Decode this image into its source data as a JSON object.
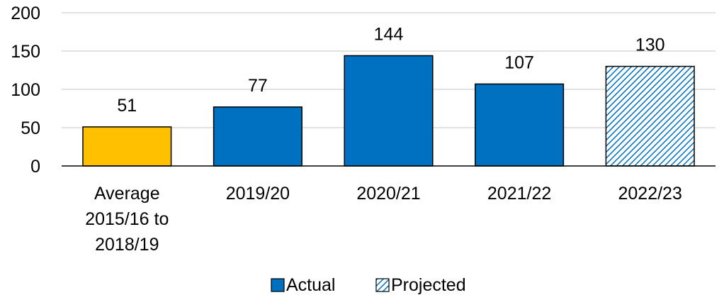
{
  "chart_data": {
    "type": "bar",
    "categories": [
      [
        "Average",
        "2015/16 to",
        "2018/19"
      ],
      [
        "2019/20"
      ],
      [
        "2020/21"
      ],
      [
        "2021/22"
      ],
      [
        "2022/23"
      ]
    ],
    "values": [
      51,
      77,
      144,
      107,
      130
    ],
    "data_labels": [
      "51",
      "77",
      "144",
      "107",
      "130"
    ],
    "bar_styles": [
      "average",
      "actual",
      "actual",
      "actual",
      "projected"
    ],
    "ylim": [
      0,
      200
    ],
    "yticks": [
      0,
      50,
      100,
      150,
      200
    ],
    "ytick_labels": [
      "0",
      "50",
      "100",
      "150",
      "200"
    ],
    "grid": true,
    "legend": {
      "placement": "bottom",
      "items": [
        {
          "label": "Actual",
          "style": "actual"
        },
        {
          "label": "Projected",
          "style": "projected"
        }
      ]
    },
    "colors": {
      "actual": "#0070c0",
      "average": "#ffc000",
      "projected_hatch": "#0070c0",
      "grid": "#d9d9d9",
      "axis": "#000000"
    }
  }
}
